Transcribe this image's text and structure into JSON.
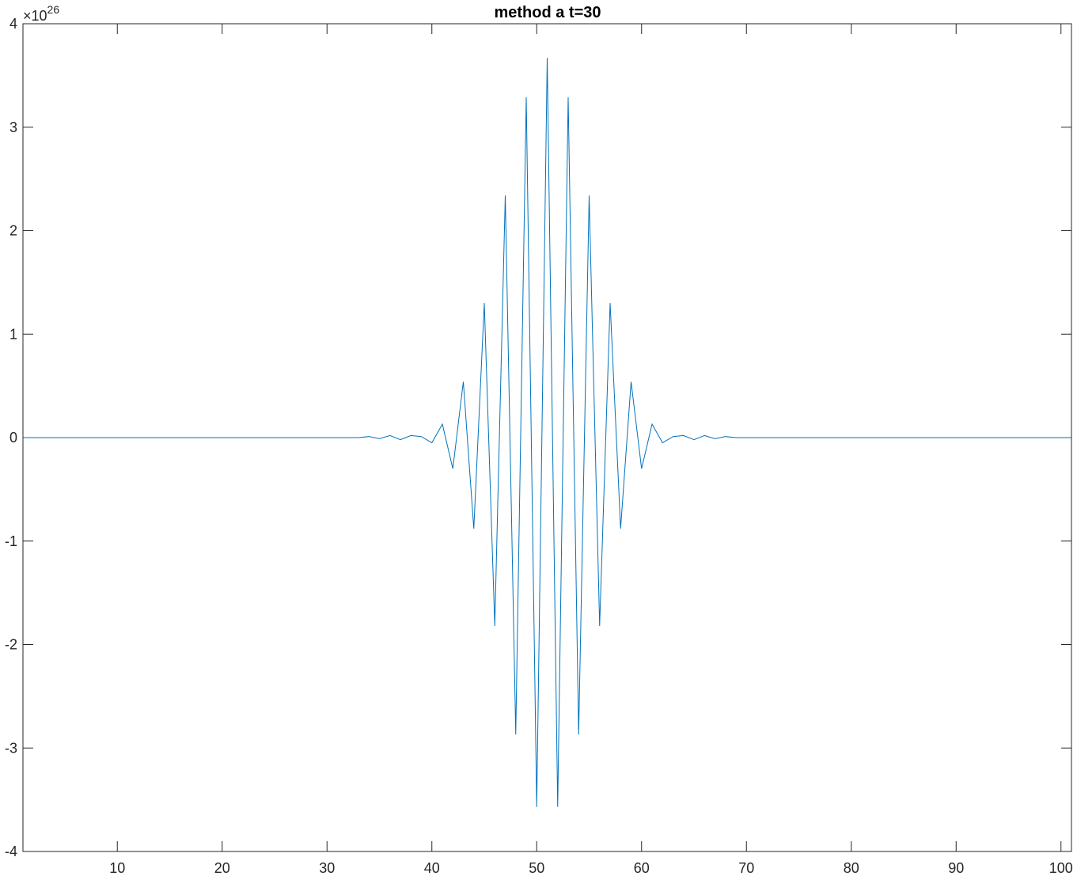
{
  "chart_data": {
    "type": "line",
    "title": "method a t=30",
    "xlabel": "",
    "ylabel": "",
    "xlim": [
      1,
      101
    ],
    "ylim": [
      -4,
      4
    ],
    "y_exponent_base": "×10",
    "y_exponent_power": "26",
    "x_ticks": [
      10,
      20,
      30,
      40,
      50,
      60,
      70,
      80,
      90,
      100
    ],
    "y_ticks": [
      -4,
      -3,
      -2,
      -1,
      0,
      1,
      2,
      3,
      4
    ],
    "x_tick_labels": [
      "10",
      "20",
      "30",
      "40",
      "50",
      "60",
      "70",
      "80",
      "90",
      "100"
    ],
    "y_tick_labels": [
      "-4",
      "-3",
      "-2",
      "-1",
      "0",
      "1",
      "2",
      "3",
      "4"
    ],
    "grid": false,
    "line_color": "#0072bd",
    "series": [
      {
        "x": [
          1,
          2,
          3,
          4,
          5,
          6,
          7,
          8,
          9,
          10,
          11,
          12,
          13,
          14,
          15,
          16,
          17,
          18,
          19,
          20,
          21,
          22,
          23,
          24,
          25,
          26,
          27,
          28,
          29,
          30,
          31,
          32,
          33,
          34,
          35,
          36,
          37,
          38,
          39,
          40,
          41,
          42,
          43,
          44,
          45,
          46,
          47,
          48,
          49,
          50,
          51,
          52,
          53,
          54,
          55,
          56,
          57,
          58,
          59,
          60,
          61,
          62,
          63,
          64,
          65,
          66,
          67,
          68,
          69,
          70,
          71,
          72,
          73,
          74,
          75,
          76,
          77,
          78,
          79,
          80,
          81,
          82,
          83,
          84,
          85,
          86,
          87,
          88,
          89,
          90,
          91,
          92,
          93,
          94,
          95,
          96,
          97,
          98,
          99,
          100,
          101
        ],
        "values": [
          0,
          0,
          0,
          0,
          0,
          0,
          0,
          0,
          0,
          0,
          0,
          0,
          0,
          0,
          0,
          0,
          0,
          0,
          0,
          0,
          0,
          0,
          0,
          0,
          0,
          0,
          0,
          0,
          0,
          0,
          0,
          0,
          0,
          0.01,
          -0.01,
          0.02,
          -0.02,
          0.02,
          0.01,
          -0.05,
          0.13,
          -0.3,
          0.54,
          -0.88,
          1.3,
          -1.82,
          2.34,
          -2.87,
          3.29,
          -3.57,
          3.67,
          -3.57,
          3.29,
          -2.87,
          2.34,
          -1.82,
          1.3,
          -0.88,
          0.54,
          -0.3,
          0.13,
          -0.05,
          0.01,
          0.02,
          -0.02,
          0.02,
          -0.01,
          0.01,
          0,
          0,
          0,
          0,
          0,
          0,
          0,
          0,
          0,
          0,
          0,
          0,
          0,
          0,
          0,
          0,
          0,
          0,
          0,
          0,
          0,
          0,
          0,
          0,
          0,
          0,
          0,
          0,
          0,
          0,
          0,
          0,
          0
        ]
      }
    ]
  }
}
